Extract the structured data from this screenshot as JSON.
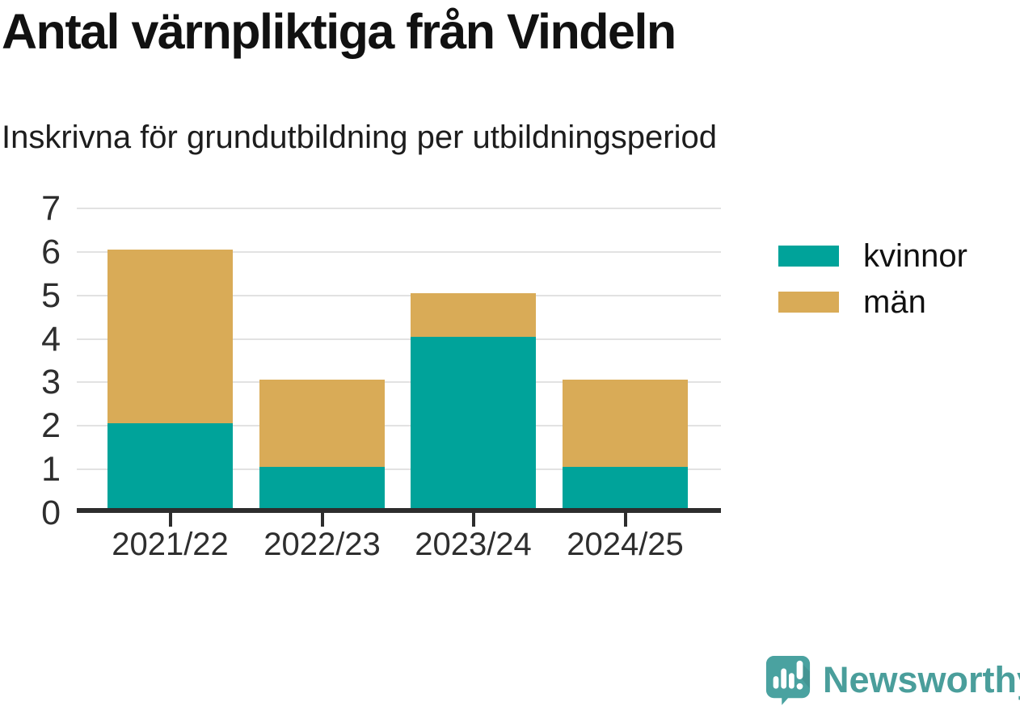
{
  "title": "Antal värnpliktiga från Vindeln",
  "subtitle": "Inskrivna för grundutbildning per utbildningsperiod",
  "chart_data": {
    "type": "bar",
    "stacked": true,
    "title": "Antal värnpliktiga från Vindeln",
    "subtitle": "Inskrivna för grundutbildning per utbildningsperiod",
    "categories": [
      "2021/22",
      "2022/23",
      "2023/24",
      "2024/25"
    ],
    "series": [
      {
        "name": "kvinnor",
        "color": "#00a39a",
        "values": [
          2,
          1,
          4,
          1
        ]
      },
      {
        "name": "män",
        "color": "#d9ab57",
        "values": [
          4,
          2,
          1,
          2
        ]
      }
    ],
    "totals": [
      6,
      3,
      5,
      3
    ],
    "ylim": [
      0,
      7
    ],
    "yticks": [
      0,
      1,
      2,
      3,
      4,
      5,
      6,
      7
    ],
    "xlabel": "",
    "ylabel": "",
    "grid": true,
    "gridline_color": "#e2e2e2",
    "axis_color": "#2d2d2d",
    "legend_position": "right"
  },
  "branding": {
    "name": "Newsworthy",
    "logo_color": "#4aa2a0",
    "text_color": "#4a9e9b",
    "logo_icon": "speech-bubble-bar-chart-icon"
  }
}
